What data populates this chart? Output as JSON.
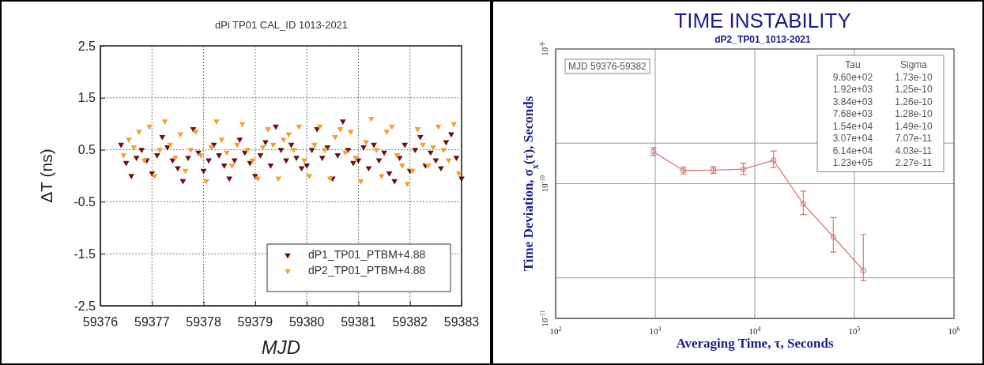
{
  "chart_data": [
    {
      "type": "scatter",
      "title": "dPi  TP01 CAL_ID 1013-2021",
      "xlabel": "MJD",
      "ylabel": "ΔT (ns)",
      "xlim": [
        59376,
        59383
      ],
      "ylim": [
        -2.5,
        2.5
      ],
      "xticks": [
        59376,
        59377,
        59378,
        59379,
        59380,
        59381,
        59382,
        59383
      ],
      "yticks": [
        -2.5,
        -1.5,
        -0.5,
        0.5,
        1.5,
        2.5
      ],
      "grid": true,
      "legend": "bottom right",
      "marker": "triangle",
      "series": [
        {
          "name": "dP1_TP01_PTBM+4.88",
          "color": "#6b0f0f",
          "x": [
            59376.4,
            59376.5,
            59376.6,
            59376.7,
            59376.8,
            59376.9,
            59377.0,
            59377.1,
            59377.2,
            59377.3,
            59377.4,
            59377.5,
            59377.6,
            59377.7,
            59377.8,
            59377.9,
            59378.0,
            59378.1,
            59378.2,
            59378.3,
            59378.4,
            59378.5,
            59378.6,
            59378.7,
            59378.8,
            59378.9,
            59379.0,
            59379.1,
            59379.2,
            59379.3,
            59379.4,
            59379.5,
            59379.6,
            59379.7,
            59379.8,
            59379.9,
            59380.0,
            59380.1,
            59380.2,
            59380.3,
            59380.4,
            59380.5,
            59380.6,
            59380.7,
            59380.8,
            59380.9,
            59381.0,
            59381.1,
            59381.2,
            59381.3,
            59381.4,
            59381.5,
            59381.6,
            59381.7,
            59381.8,
            59381.9,
            59382.0,
            59382.1,
            59382.2,
            59382.3,
            59382.4,
            59382.5,
            59382.6,
            59382.7,
            59382.8,
            59382.9,
            59383.0
          ],
          "values": [
            0.6,
            0.25,
            0.0,
            0.35,
            0.5,
            0.3,
            0.05,
            0.4,
            0.75,
            0.55,
            0.3,
            0.15,
            -0.1,
            0.35,
            0.9,
            0.45,
            0.1,
            0.3,
            0.6,
            0.4,
            0.2,
            -0.05,
            0.3,
            0.7,
            0.45,
            0.25,
            0.0,
            0.4,
            0.65,
            0.2,
            0.95,
            0.5,
            0.3,
            0.6,
            0.35,
            0.15,
            0.2,
            0.5,
            0.9,
            0.35,
            0.55,
            -0.05,
            0.4,
            1.05,
            0.5,
            0.25,
            0.3,
            0.55,
            0.15,
            0.6,
            0.3,
            0.45,
            0.05,
            -0.1,
            0.35,
            0.6,
            0.1,
            0.5,
            0.75,
            0.2,
            0.45,
            0.3,
            0.15,
            0.65,
            0.8,
            0.35,
            -0.05
          ]
        },
        {
          "name": "dP2_TP01_PTBM+4.88",
          "color": "#f5a030",
          "x": [
            59376.45,
            59376.55,
            59376.65,
            59376.75,
            59376.85,
            59376.95,
            59377.05,
            59377.15,
            59377.25,
            59377.35,
            59377.45,
            59377.55,
            59377.65,
            59377.75,
            59377.85,
            59377.95,
            59378.05,
            59378.15,
            59378.25,
            59378.35,
            59378.45,
            59378.55,
            59378.65,
            59378.75,
            59378.85,
            59378.95,
            59379.05,
            59379.15,
            59379.25,
            59379.35,
            59379.45,
            59379.55,
            59379.65,
            59379.75,
            59379.85,
            59379.95,
            59380.05,
            59380.15,
            59380.25,
            59380.35,
            59380.45,
            59380.55,
            59380.65,
            59380.75,
            59380.85,
            59380.95,
            59381.05,
            59381.15,
            59381.25,
            59381.35,
            59381.45,
            59381.55,
            59381.65,
            59381.75,
            59381.85,
            59381.95,
            59382.05,
            59382.15,
            59382.25,
            59382.35,
            59382.45,
            59382.55,
            59382.65,
            59382.75,
            59382.85,
            59382.95
          ],
          "values": [
            0.4,
            0.7,
            0.55,
            0.85,
            0.3,
            0.95,
            0.0,
            0.5,
            1.05,
            0.6,
            0.35,
            0.8,
            0.1,
            0.5,
            0.85,
            0.4,
            -0.1,
            0.55,
            1.05,
            0.7,
            0.45,
            0.2,
            0.6,
            1.0,
            0.5,
            0.3,
            -0.05,
            0.55,
            0.9,
            0.6,
            -0.05,
            0.7,
            0.8,
            0.5,
            0.95,
            0.3,
            0.0,
            0.6,
            0.95,
            0.5,
            -0.05,
            0.75,
            0.9,
            0.45,
            0.85,
            0.35,
            -0.1,
            0.65,
            1.1,
            0.5,
            0.0,
            0.85,
            0.95,
            0.4,
            0.2,
            -0.15,
            0.1,
            0.9,
            0.6,
            0.2,
            0.55,
            0.95,
            0.5,
            0.3,
            1.0,
            0.05
          ]
        }
      ]
    },
    {
      "type": "line",
      "title": "TIME INSTABILITY",
      "subtitle": "dP2_TP01_1013-2021",
      "xlabel": "Averaging Time, τ, Seconds",
      "ylabel": "Time Deviation, σ$_{x}$(τ), Seconds",
      "annotations": [
        "MJD 59376-59382",
        "Tau",
        "Sigma",
        "9.60e+02",
        "1.73e-10",
        "1.92e+03",
        "1.25e-10",
        "3.84e+03",
        "1.26e-10",
        "7.68e+03",
        "1.28e-10",
        "1.54e+04",
        "1.49e-10",
        "3.07e+04",
        "7.07e-11",
        "6.14e+04",
        "4.03e-11",
        "1.23e+05",
        "2.27e-11"
      ],
      "log": "xy",
      "xlim": [
        100,
        1000000
      ],
      "ylim": [
        1e-11,
        1e-09
      ],
      "xticks": [
        {
          "value": 100,
          "label": "10$^{2}$"
        },
        {
          "value": 1000,
          "label": "10$^{3}$"
        },
        {
          "value": 10000,
          "label": "10$^{4}$"
        },
        {
          "value": 100000,
          "label": "10$^{5}$"
        },
        {
          "value": 1000000,
          "label": "10$^{6}$"
        }
      ],
      "yticks": [
        {
          "value": 1e-11,
          "label": "10$^{-11}$"
        },
        {
          "value": 2e-11,
          "label": null
        },
        {
          "value": 1e-10,
          "label": "10$^{-10}$"
        },
        {
          "value": 2e-10,
          "label": null
        },
        {
          "value": 1e-09,
          "label": "10$^{-9}$"
        }
      ],
      "grid": true,
      "marker": "circle",
      "series": [
        {
          "color": "#d97a7a",
          "x": [
            960,
            1920,
            3840,
            7680,
            15400,
            30700,
            61400,
            123000
          ],
          "values": [
            1.73e-10,
            1.25e-10,
            1.26e-10,
            1.28e-10,
            1.49e-10,
            7.07e-11,
            4.03e-11,
            2.27e-11
          ],
          "errors": [
            [
              1.62e-10,
              1.85e-10
            ],
            [
              1.18e-10,
              1.33e-10
            ],
            [
              1.19e-10,
              1.34e-10
            ],
            [
              1.17e-10,
              1.42e-10
            ],
            [
              1.32e-10,
              1.75e-10
            ],
            [
              5.9e-11,
              8.8e-11
            ],
            [
              3.1e-11,
              5.6e-11
            ],
            [
              1.9e-11,
              4.2e-11
            ]
          ]
        }
      ]
    }
  ]
}
